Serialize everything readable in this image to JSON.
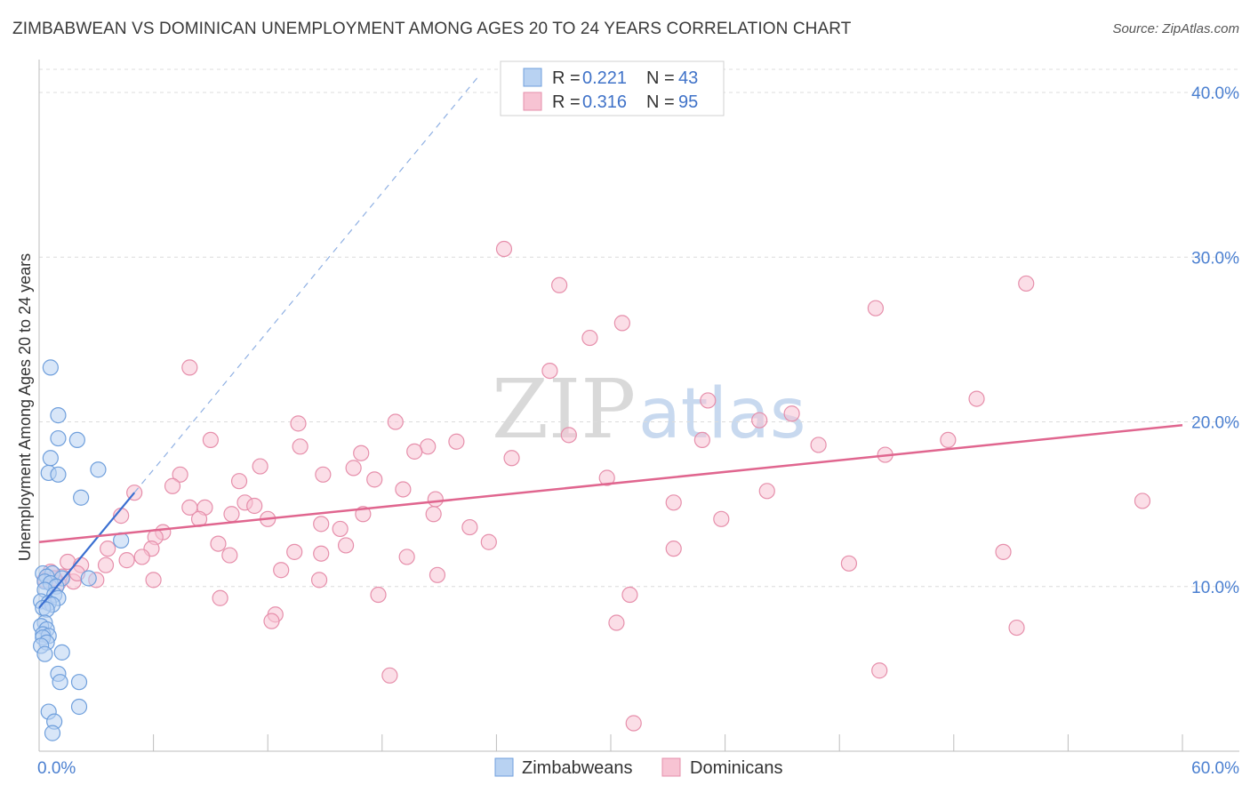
{
  "title": "ZIMBABWEAN VS DOMINICAN UNEMPLOYMENT AMONG AGES 20 TO 24 YEARS CORRELATION CHART",
  "source": "Source: ZipAtlas.com",
  "watermark": {
    "zip": "ZIP",
    "atlas": "atlas"
  },
  "colors": {
    "blue_fill": "#b8d2f2",
    "blue_stroke": "#6f9fdc",
    "blue_line": "#3a6fd1",
    "pink_fill": "#f7c3d3",
    "pink_stroke": "#e68fab",
    "pink_line": "#e0668f",
    "grid": "#dcdcdc",
    "axis_label": "#4a7fd0"
  },
  "legend": {
    "rows": [
      {
        "r_label": "R = ",
        "r_value": "0.221",
        "n_label": "N = ",
        "n_value": "43"
      },
      {
        "r_label": "R = ",
        "r_value": "0.316",
        "n_label": "N = ",
        "n_value": "95"
      }
    ]
  },
  "bottom_legend": [
    "Zimbabweans",
    "Dominicans"
  ],
  "chart_data": {
    "type": "scatter",
    "title": "ZIMBABWEAN VS DOMINICAN UNEMPLOYMENT AMONG AGES 20 TO 24 YEARS CORRELATION CHART",
    "xlabel": "",
    "ylabel": "Unemployment Among Ages 20 to 24 years",
    "xlim": [
      0,
      60
    ],
    "ylim": [
      0,
      42
    ],
    "x_tick_labels": [
      "0.0%",
      "60.0%"
    ],
    "y_ticks": [
      10,
      20,
      30,
      40
    ],
    "y_tick_labels": [
      "10.0%",
      "20.0%",
      "30.0%",
      "40.0%"
    ],
    "grid": true,
    "series": [
      {
        "name": "Zimbabweans",
        "r": 0.221,
        "n": 43,
        "trend": {
          "x0": 0,
          "y0": 8.7,
          "x1": 5.0,
          "y1": 15.7,
          "dashed_to_x": 23.0
        },
        "points": [
          [
            0.6,
            23.3
          ],
          [
            1.0,
            20.4
          ],
          [
            1.0,
            19.0
          ],
          [
            2.0,
            18.9
          ],
          [
            0.6,
            17.8
          ],
          [
            0.5,
            16.9
          ],
          [
            1.0,
            16.8
          ],
          [
            3.1,
            17.1
          ],
          [
            2.2,
            15.4
          ],
          [
            4.3,
            12.8
          ],
          [
            0.2,
            10.8
          ],
          [
            0.7,
            10.8
          ],
          [
            0.4,
            10.6
          ],
          [
            1.2,
            10.5
          ],
          [
            2.6,
            10.5
          ],
          [
            0.3,
            10.3
          ],
          [
            0.6,
            10.2
          ],
          [
            0.9,
            10.0
          ],
          [
            0.3,
            9.8
          ],
          [
            0.8,
            9.5
          ],
          [
            1.0,
            9.3
          ],
          [
            0.1,
            9.1
          ],
          [
            0.5,
            9.0
          ],
          [
            0.7,
            8.9
          ],
          [
            0.2,
            8.7
          ],
          [
            0.4,
            8.6
          ],
          [
            0.3,
            7.8
          ],
          [
            0.1,
            7.6
          ],
          [
            0.4,
            7.4
          ],
          [
            0.2,
            7.1
          ],
          [
            0.5,
            7.0
          ],
          [
            0.2,
            6.9
          ],
          [
            0.4,
            6.6
          ],
          [
            0.1,
            6.4
          ],
          [
            0.3,
            5.9
          ],
          [
            1.2,
            6.0
          ],
          [
            1.0,
            4.7
          ],
          [
            1.1,
            4.2
          ],
          [
            2.1,
            4.2
          ],
          [
            0.5,
            2.4
          ],
          [
            2.1,
            2.7
          ],
          [
            0.8,
            1.8
          ],
          [
            0.7,
            1.1
          ]
        ]
      },
      {
        "name": "Dominicans",
        "r": 0.316,
        "n": 95,
        "trend": {
          "x0": 0,
          "y0": 12.7,
          "x1": 60,
          "y1": 19.8
        },
        "points": [
          [
            24.4,
            30.5
          ],
          [
            27.3,
            28.3
          ],
          [
            51.8,
            28.4
          ],
          [
            43.9,
            26.9
          ],
          [
            30.6,
            26.0
          ],
          [
            28.9,
            25.1
          ],
          [
            7.9,
            23.3
          ],
          [
            26.8,
            23.1
          ],
          [
            35.1,
            21.3
          ],
          [
            49.2,
            21.4
          ],
          [
            39.5,
            20.5
          ],
          [
            37.8,
            20.1
          ],
          [
            13.6,
            19.9
          ],
          [
            18.7,
            20.0
          ],
          [
            9.0,
            18.9
          ],
          [
            27.8,
            19.2
          ],
          [
            21.9,
            18.8
          ],
          [
            34.8,
            18.9
          ],
          [
            47.7,
            18.9
          ],
          [
            13.7,
            18.5
          ],
          [
            20.4,
            18.5
          ],
          [
            40.9,
            18.6
          ],
          [
            16.9,
            18.1
          ],
          [
            19.7,
            18.2
          ],
          [
            24.8,
            17.8
          ],
          [
            44.4,
            18.0
          ],
          [
            11.6,
            17.3
          ],
          [
            16.5,
            17.2
          ],
          [
            7.4,
            16.8
          ],
          [
            14.9,
            16.8
          ],
          [
            10.5,
            16.4
          ],
          [
            17.6,
            16.5
          ],
          [
            29.8,
            16.6
          ],
          [
            7.0,
            16.1
          ],
          [
            19.1,
            15.9
          ],
          [
            38.2,
            15.8
          ],
          [
            5.0,
            15.7
          ],
          [
            10.8,
            15.1
          ],
          [
            11.3,
            14.9
          ],
          [
            20.8,
            15.3
          ],
          [
            33.3,
            15.1
          ],
          [
            57.9,
            15.2
          ],
          [
            7.9,
            14.8
          ],
          [
            8.7,
            14.8
          ],
          [
            4.3,
            14.3
          ],
          [
            10.1,
            14.4
          ],
          [
            17.0,
            14.4
          ],
          [
            20.7,
            14.4
          ],
          [
            8.4,
            14.1
          ],
          [
            12.0,
            14.1
          ],
          [
            35.8,
            14.1
          ],
          [
            14.8,
            13.8
          ],
          [
            22.6,
            13.6
          ],
          [
            6.5,
            13.3
          ],
          [
            15.8,
            13.5
          ],
          [
            6.1,
            13.0
          ],
          [
            9.4,
            12.6
          ],
          [
            16.1,
            12.5
          ],
          [
            23.6,
            12.7
          ],
          [
            3.6,
            12.3
          ],
          [
            5.9,
            12.3
          ],
          [
            13.4,
            12.1
          ],
          [
            14.8,
            12.0
          ],
          [
            33.3,
            12.3
          ],
          [
            50.6,
            12.1
          ],
          [
            10.0,
            11.9
          ],
          [
            5.4,
            11.8
          ],
          [
            19.3,
            11.8
          ],
          [
            4.6,
            11.6
          ],
          [
            1.5,
            11.5
          ],
          [
            2.2,
            11.3
          ],
          [
            3.5,
            11.3
          ],
          [
            42.5,
            11.4
          ],
          [
            12.7,
            11.0
          ],
          [
            0.6,
            10.9
          ],
          [
            1.2,
            10.6
          ],
          [
            6.0,
            10.4
          ],
          [
            14.7,
            10.4
          ],
          [
            20.9,
            10.7
          ],
          [
            0.3,
            10.4
          ],
          [
            1.0,
            10.2
          ],
          [
            1.8,
            10.3
          ],
          [
            3.0,
            10.4
          ],
          [
            9.5,
            9.3
          ],
          [
            17.8,
            9.5
          ],
          [
            31.0,
            9.5
          ],
          [
            12.4,
            8.3
          ],
          [
            12.2,
            7.9
          ],
          [
            30.3,
            7.8
          ],
          [
            51.3,
            7.5
          ],
          [
            18.4,
            4.6
          ],
          [
            44.1,
            4.9
          ],
          [
            31.2,
            1.7
          ],
          [
            0.8,
            10.5
          ],
          [
            2.0,
            10.8
          ]
        ]
      }
    ]
  }
}
